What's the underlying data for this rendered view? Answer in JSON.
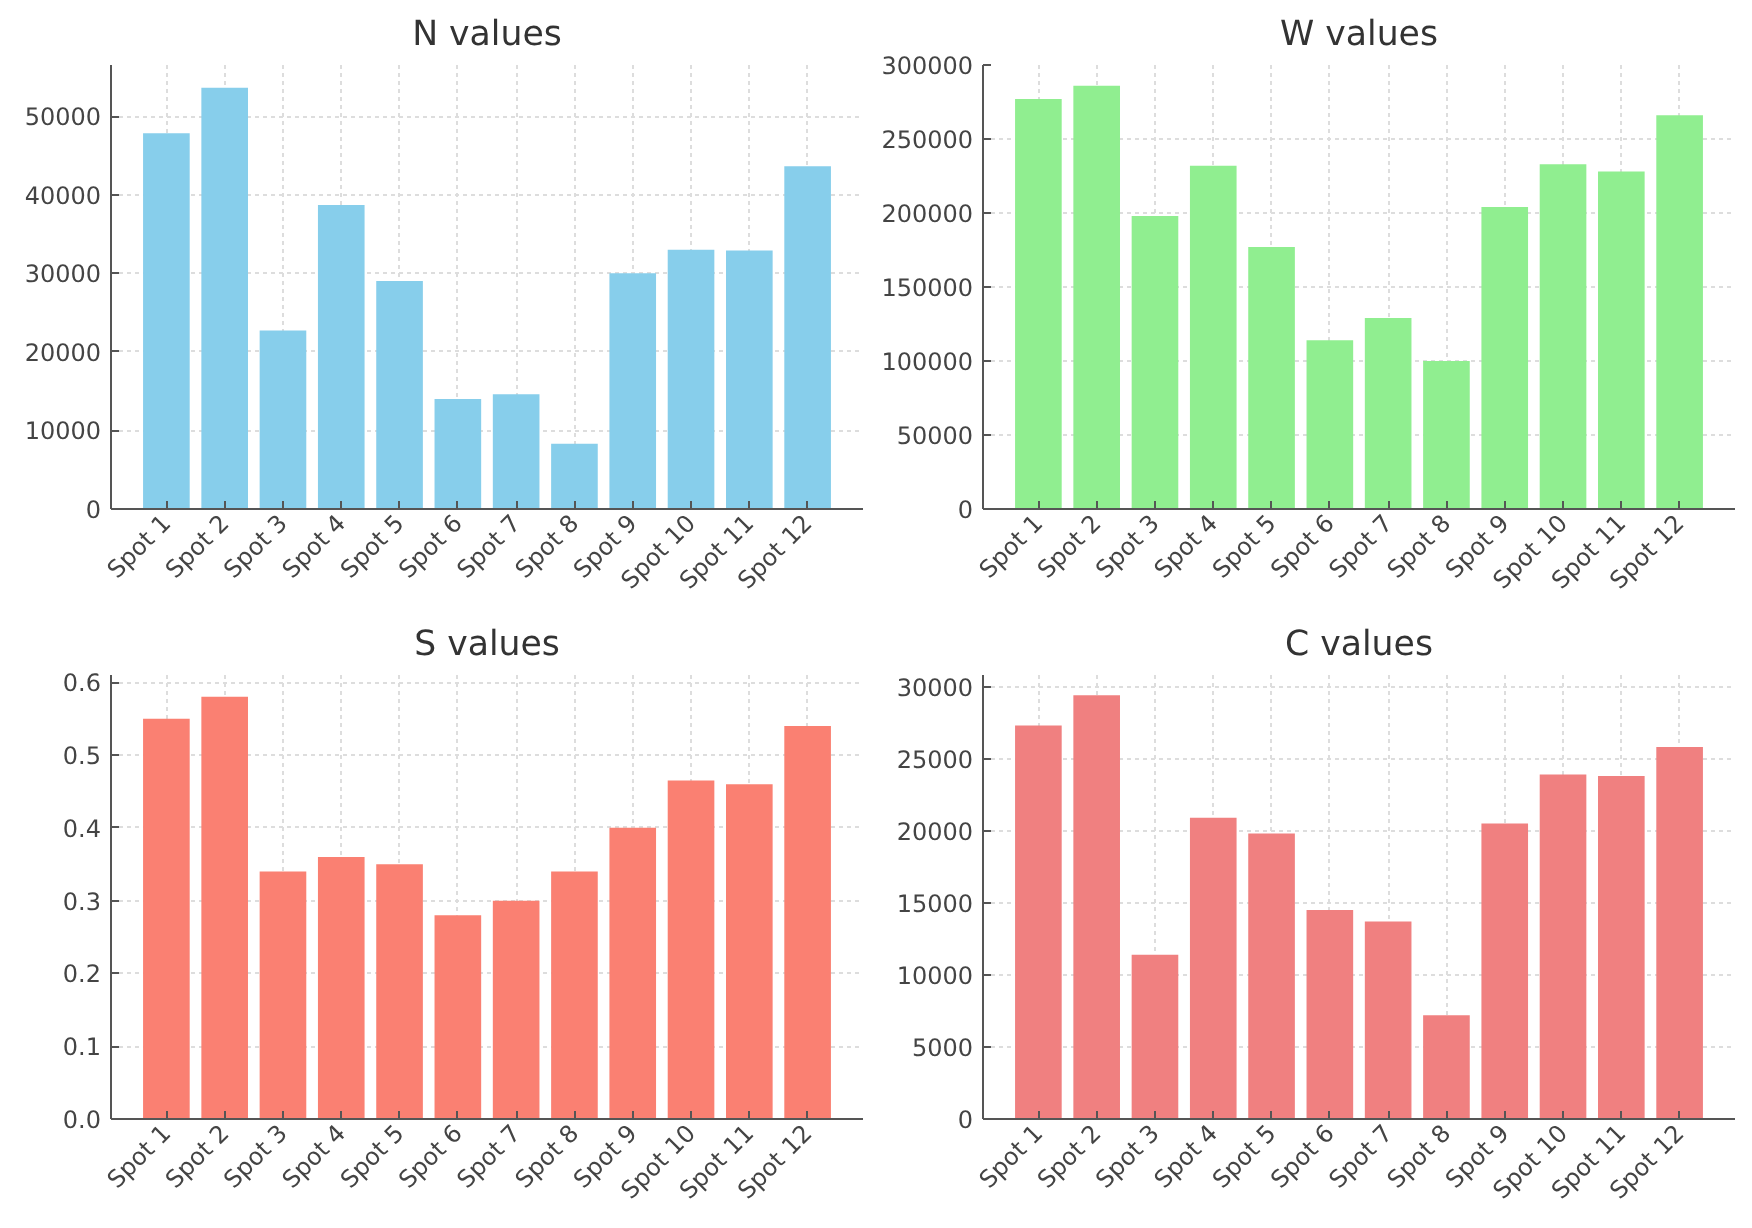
{
  "chart_data": [
    {
      "type": "bar",
      "title": "N values",
      "categories": [
        "Spot 1",
        "Spot 2",
        "Spot 3",
        "Spot 4",
        "Spot 5",
        "Spot 6",
        "Spot 7",
        "Spot 8",
        "Spot 9",
        "Spot 10",
        "Spot 11",
        "Spot 12"
      ],
      "values": [
        47800,
        53600,
        22700,
        38700,
        29000,
        14000,
        14600,
        8300,
        30000,
        33000,
        32900,
        43600
      ],
      "color": "#87ceeb",
      "ylim": [
        0,
        56500
      ],
      "yticks": [
        0,
        10000,
        20000,
        30000,
        40000,
        50000
      ],
      "grid": true
    },
    {
      "type": "bar",
      "title": "W values",
      "categories": [
        "Spot 1",
        "Spot 2",
        "Spot 3",
        "Spot 4",
        "Spot 5",
        "Spot 6",
        "Spot 7",
        "Spot 8",
        "Spot 9",
        "Spot 10",
        "Spot 11",
        "Spot 12"
      ],
      "values": [
        277000,
        286000,
        198000,
        232000,
        177000,
        114000,
        129000,
        100000,
        204000,
        233000,
        228000,
        266000
      ],
      "color": "#90ee90",
      "ylim": [
        0,
        300000
      ],
      "yticks": [
        0,
        50000,
        100000,
        150000,
        200000,
        250000,
        300000
      ],
      "grid": true
    },
    {
      "type": "bar",
      "title": "S values",
      "categories": [
        "Spot 1",
        "Spot 2",
        "Spot 3",
        "Spot 4",
        "Spot 5",
        "Spot 6",
        "Spot 7",
        "Spot 8",
        "Spot 9",
        "Spot 10",
        "Spot 11",
        "Spot 12"
      ],
      "values": [
        0.55,
        0.58,
        0.34,
        0.36,
        0.35,
        0.28,
        0.3,
        0.34,
        0.4,
        0.465,
        0.46,
        0.54
      ],
      "color": "#fa8072",
      "ylim": [
        0,
        0.61
      ],
      "yticks": [
        {
          "value": 0,
          "label": "0.0"
        },
        0.1,
        0.2,
        0.3,
        0.4,
        0.5,
        0.6
      ],
      "grid": true
    },
    {
      "type": "bar",
      "title": "C values",
      "categories": [
        "Spot 1",
        "Spot 2",
        "Spot 3",
        "Spot 4",
        "Spot 5",
        "Spot 6",
        "Spot 7",
        "Spot 8",
        "Spot 9",
        "Spot 10",
        "Spot 11",
        "Spot 12"
      ],
      "values": [
        27300,
        29400,
        11400,
        20900,
        19800,
        14500,
        13700,
        7200,
        20500,
        23900,
        23800,
        25800
      ],
      "color": "#f08080",
      "ylim": [
        0,
        30800
      ],
      "yticks": [
        0,
        5000,
        10000,
        15000,
        20000,
        25000,
        30000
      ],
      "grid": true
    }
  ]
}
